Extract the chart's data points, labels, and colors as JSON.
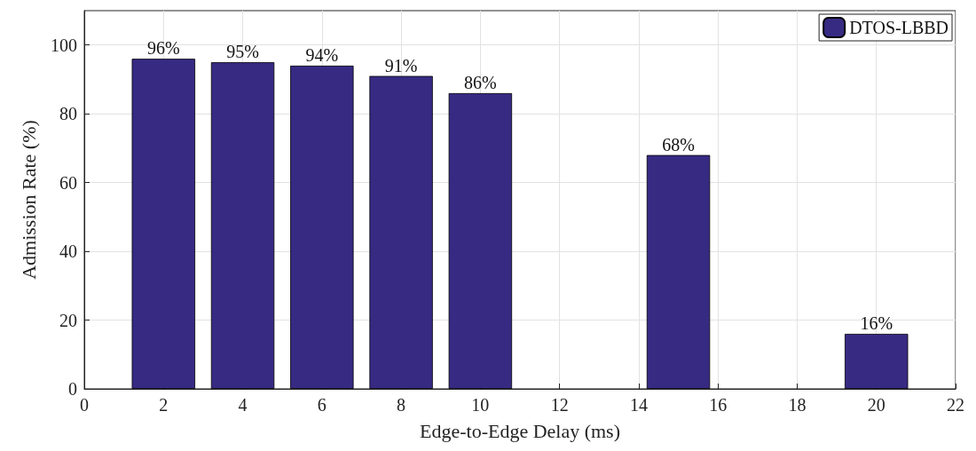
{
  "chart_data": {
    "type": "bar",
    "xlabel": "Edge-to-Edge Delay (ms)",
    "ylabel": "Admission Rate (%)",
    "x": [
      2,
      4,
      6,
      8,
      10,
      15,
      20
    ],
    "series": [
      {
        "name": "DTOS-LBBD",
        "color": "#372a83",
        "values": [
          96,
          95,
          94,
          91,
          86,
          68,
          16
        ],
        "value_labels": [
          "96%",
          "95%",
          "94%",
          "91%",
          "86%",
          "68%",
          "16%"
        ]
      }
    ],
    "xlim": [
      0,
      22
    ],
    "xticks": [
      0,
      2,
      4,
      6,
      8,
      10,
      12,
      14,
      16,
      18,
      20,
      22
    ],
    "ylim": [
      0,
      110
    ],
    "yticks": [
      0,
      20,
      40,
      60,
      80,
      100
    ],
    "grid": true,
    "legend": "top right"
  }
}
